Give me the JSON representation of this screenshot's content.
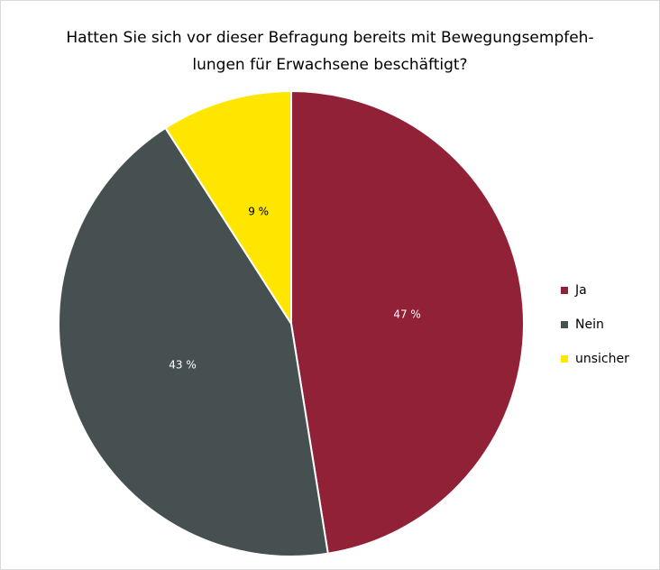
{
  "chart_data": {
    "type": "pie",
    "title_lines": [
      "Hatten Sie sich vor dieser Befragung bereits mit Bewegungsempfeh-",
      "lungen für Erwachsene beschäftigt?"
    ],
    "slices": [
      {
        "name": "Ja",
        "value": 47,
        "label": "47 %",
        "color": "#912136"
      },
      {
        "name": "Nein",
        "value": 43,
        "label": "43 %",
        "color": "#465050"
      },
      {
        "name": "unsicher",
        "value": 9,
        "label": "9 %",
        "color": "#ffe600"
      }
    ],
    "legend_position": "right",
    "start_angle": "12 o'clock",
    "direction": "clockwise"
  }
}
